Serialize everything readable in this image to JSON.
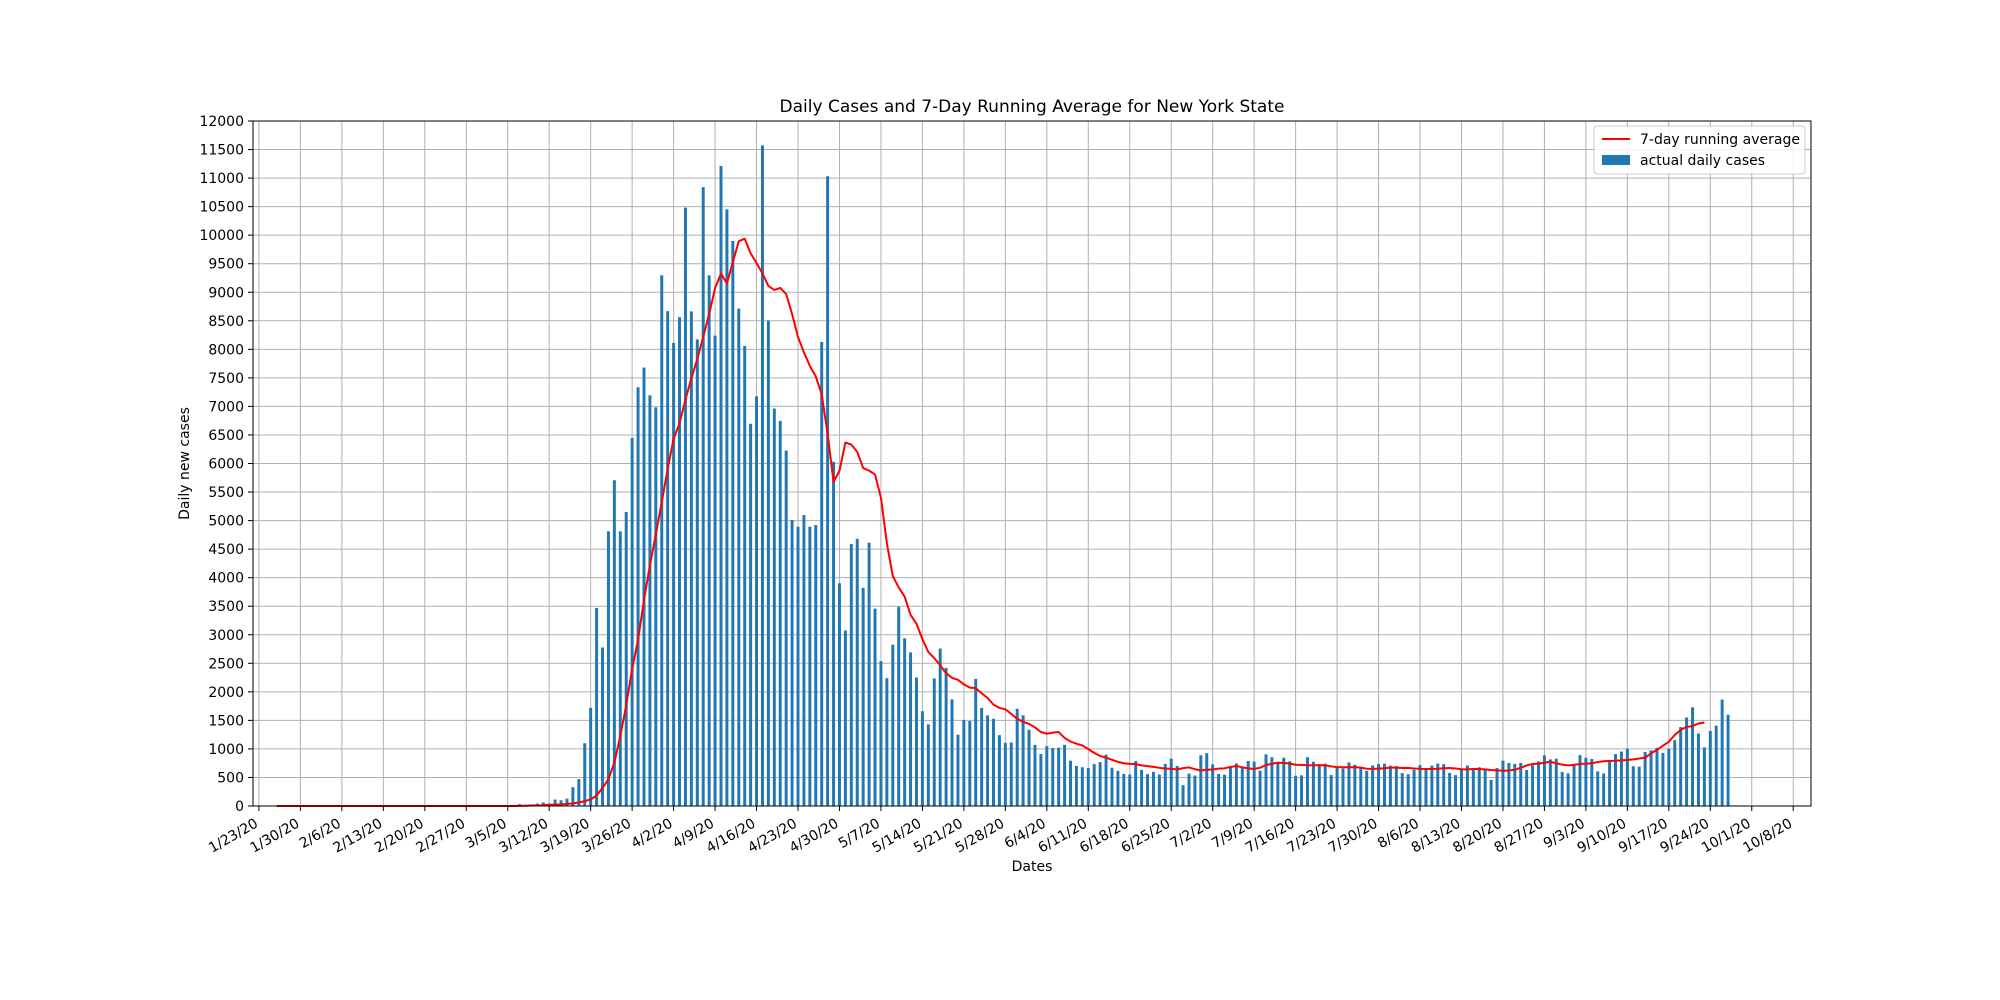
{
  "chart_data": {
    "type": "bar",
    "title": "Daily Cases and 7-Day Running Average for New York State",
    "xlabel": "Dates",
    "ylabel": "Daily new cases",
    "ylim": [
      0,
      12000
    ],
    "yticks": [
      0,
      500,
      1000,
      1500,
      2000,
      2500,
      3000,
      3500,
      4000,
      4500,
      5000,
      5500,
      6000,
      6500,
      7000,
      7500,
      8000,
      8500,
      9000,
      9500,
      10000,
      10500,
      11000,
      11500,
      12000
    ],
    "xticks": [
      "1/23/20",
      "1/30/20",
      "2/6/20",
      "2/13/20",
      "2/20/20",
      "2/27/20",
      "3/5/20",
      "3/12/20",
      "3/19/20",
      "3/26/20",
      "4/2/20",
      "4/9/20",
      "4/16/20",
      "4/23/20",
      "4/30/20",
      "5/7/20",
      "5/14/20",
      "5/21/20",
      "5/28/20",
      "6/4/20",
      "6/11/20",
      "6/18/20",
      "6/25/20",
      "7/2/20",
      "7/9/20",
      "7/16/20",
      "7/23/20",
      "7/30/20",
      "8/6/20",
      "8/13/20",
      "8/20/20",
      "8/27/20",
      "9/3/20",
      "9/10/20",
      "9/17/20",
      "9/24/20",
      "10/1/20",
      "10/8/20"
    ],
    "x_start": "1/22/20",
    "x_end": "10/11/20",
    "grid": true,
    "legend_position": "top-right",
    "colors": {
      "bars": "#1f77b4",
      "line": "#ff0000",
      "grid": "#b0b0b0"
    },
    "series": [
      {
        "name": "actual daily cases",
        "type": "bar",
        "start": "3/1/20",
        "values": [
          1,
          0,
          0,
          10,
          12,
          11,
          32,
          16,
          28,
          43,
          63,
          45,
          112,
          100,
          129,
          329,
          471,
          1100,
          1720,
          3470,
          2777,
          4812,
          5707,
          4811,
          5150,
          6448,
          7336,
          7681,
          7195,
          6984,
          9298,
          8669,
          8112,
          8563,
          10482,
          8665,
          8174,
          10841,
          9296,
          8240,
          11213,
          10453,
          9898,
          8713,
          8058,
          6696,
          7175,
          11571,
          8505,
          6963,
          6747,
          6226,
          5012,
          4892,
          5097,
          4893,
          4921,
          8130,
          11033,
          6031,
          3902,
          3075,
          4589,
          4681,
          3822,
          4613,
          3458,
          2538,
          2239,
          2826,
          3491,
          2938,
          2690,
          2251,
          1660,
          1430,
          2236,
          2758,
          2419,
          1867,
          1250,
          1506,
          1489,
          2227,
          1718,
          1588,
          1528,
          1241,
          1106,
          1113,
          1703,
          1588,
          1336,
          1071,
          910,
          1048,
          1015,
          1021,
          1072,
          794,
          702,
          679,
          664,
          734,
          768,
          900,
          671,
          615,
          563,
          550,
          787,
          633,
          557,
          598,
          551,
          737,
          829,
          702,
          365,
          568,
          534,
          889,
          926,
          728,
          561,
          549,
          685,
          746,
          687,
          789,
          778,
          619,
          906,
          854,
          762,
          845,
          783,
          530,
          537,
          855,
          775,
          725,
          741,
          542,
          672,
          659,
          764,
          722,
          684,
          616,
          711,
          734,
          742,
          706,
          698,
          575,
          556,
          636,
          716,
          661,
          708,
          743,
          734,
          580,
          541,
          658,
          708,
          657,
          679,
          643,
          456,
          664,
          795,
          753,
          738,
          754,
          631,
          715,
          781,
          886,
          816,
          828,
          596,
          572,
          738,
          892,
          846,
          824,
          607,
          570,
          780,
          908,
          954,
          1005,
          696,
          690,
          948,
          973,
          1018,
          931,
          1005,
          1154,
          1382,
          1550,
          1728,
          1270,
          1028,
          1315,
          1408,
          1865,
          1598
        ]
      },
      {
        "name": "7-day running average",
        "type": "line",
        "start": "1/26/20",
        "values": [
          0,
          0,
          0,
          0,
          0,
          0,
          0,
          0,
          0,
          0,
          0,
          0,
          0,
          0,
          0,
          0,
          0,
          0,
          0,
          0,
          0,
          0,
          0,
          0,
          0,
          0,
          0,
          0,
          0,
          0,
          0,
          0,
          0,
          0,
          0,
          0,
          0,
          0,
          0,
          0,
          0,
          3,
          5,
          8,
          12,
          14,
          21,
          24,
          28,
          36,
          46,
          61,
          85,
          116,
          182,
          317,
          470,
          760,
          1227,
          1764,
          2404,
          2910,
          3612,
          4216,
          4758,
          5324,
          5906,
          6433,
          6704,
          7120,
          7493,
          7830,
          8221,
          8617,
          9071,
          9328,
          9154,
          9528,
          9893,
          9938,
          9683,
          9513,
          9330,
          9111,
          9041,
          9076,
          8969,
          8620,
          8217,
          7948,
          7711,
          7525,
          7211,
          6521,
          5678,
          5871,
          6367,
          6331,
          6205,
          5920,
          5875,
          5808,
          5401,
          4606,
          4028,
          3829,
          3669,
          3350,
          3192,
          2922,
          2698,
          2591,
          2466,
          2326,
          2244,
          2211,
          2131,
          2074,
          2066,
          1975,
          1892,
          1776,
          1718,
          1695,
          1614,
          1527,
          1475,
          1440,
          1377,
          1296,
          1266,
          1286,
          1296,
          1192,
          1130,
          1091,
          1061,
          996,
          931,
          876,
          849,
          810,
          773,
          749,
          738,
          733,
          712,
          698,
          686,
          669,
          656,
          650,
          641,
          664,
          676,
          645,
          622,
          636,
          640,
          654,
          660,
          684,
          701,
          678,
          660,
          649,
          671,
          716,
          741,
          757,
          756,
          742,
          722,
          720,
          715,
          711,
          717,
          713,
          694,
          680,
          679,
          678,
          681,
          673,
          652,
          650,
          654,
          661,
          675,
          672,
          665,
          667,
          658,
          650,
          648,
          649,
          653,
          662,
          665,
          658,
          643,
          641,
          648,
          649,
          642,
          630,
          625,
          618,
          623,
          636,
          668,
          712,
          736,
          743,
          758,
          775,
          748,
          724,
          712,
          720,
          737,
          741,
          749,
          770,
          784,
          790,
          792,
          799,
          805,
          816,
          832,
          845,
          922,
          985,
          1055,
          1127,
          1245,
          1334,
          1385,
          1400,
          1445,
          1462
        ]
      }
    ]
  }
}
